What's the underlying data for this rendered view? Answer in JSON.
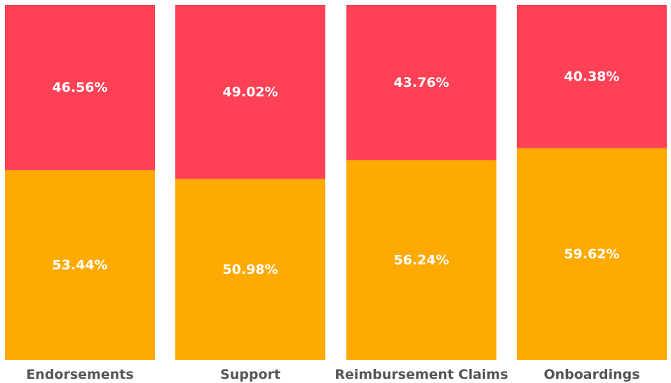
{
  "chart_data": {
    "type": "bar",
    "stacked": true,
    "normalized": true,
    "categories": [
      "Endorsements",
      "Support",
      "Reimbursement Claims",
      "Onboardings"
    ],
    "series": [
      {
        "color": "#FFAA00",
        "values": [
          53.44,
          50.98,
          56.24,
          59.62
        ],
        "labels": [
          "53.44%",
          "50.98%",
          "56.24%",
          "59.62%"
        ]
      },
      {
        "color": "#FF4155",
        "values": [
          46.56,
          49.02,
          43.76,
          40.38
        ],
        "labels": [
          "46.56%",
          "49.02%",
          "43.76%",
          "40.38%"
        ]
      }
    ],
    "ylim": [
      0,
      100
    ],
    "grid": false,
    "legend": "none"
  }
}
